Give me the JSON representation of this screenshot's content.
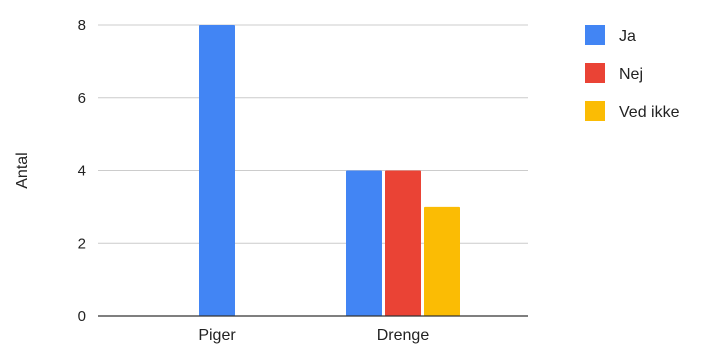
{
  "chart_data": {
    "type": "bar",
    "ylabel": "Antal",
    "categories": [
      "Piger",
      "Drenge"
    ],
    "series": [
      {
        "name": "Ja",
        "color": "#4285f4",
        "values": [
          8,
          4
        ]
      },
      {
        "name": "Nej",
        "color": "#ea4335",
        "values": [
          0,
          4
        ]
      },
      {
        "name": "Ved ikke",
        "color": "#fbbc04",
        "values": [
          0,
          3
        ]
      }
    ],
    "ylim": [
      0,
      8
    ],
    "yticks": [
      0,
      2,
      4,
      6,
      8
    ],
    "grid": true,
    "legend_position": "right"
  }
}
